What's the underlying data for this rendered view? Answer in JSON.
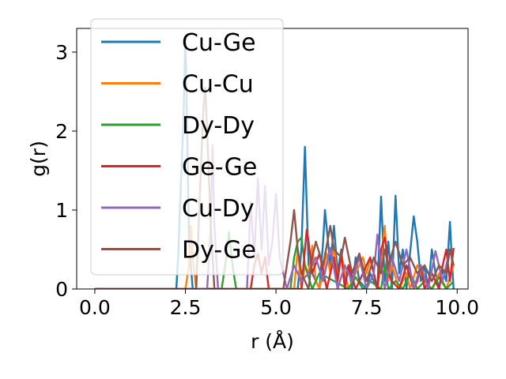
{
  "chart_data": {
    "type": "line",
    "title": "",
    "xlabel": "r (Å)",
    "ylabel": "g(r)",
    "xlim": [
      -0.5,
      10.3
    ],
    "ylim": [
      0,
      3.3
    ],
    "xticks": [
      0.0,
      2.5,
      5.0,
      7.5,
      10.0
    ],
    "xtick_labels": [
      "0.0",
      "2.5",
      "5.0",
      "7.5",
      "10.0"
    ],
    "yticks": [
      0,
      1,
      2,
      3
    ],
    "ytick_labels": [
      "0",
      "1",
      "2",
      "3"
    ],
    "grid": false,
    "legend_position": "top-left",
    "series": [
      {
        "name": "Cu-Ge",
        "color": "#1f77b4",
        "x": [
          0.0,
          2.25,
          2.3,
          2.45,
          2.5,
          2.55,
          2.6,
          2.7,
          5.6,
          5.7,
          5.8,
          5.9,
          6.2,
          6.3,
          6.35,
          6.5,
          6.6,
          6.7,
          6.8,
          6.9,
          7.0,
          7.1,
          7.2,
          7.3,
          7.5,
          7.6,
          7.8,
          7.9,
          8.0,
          8.1,
          8.2,
          8.3,
          8.4,
          8.5,
          8.6,
          8.8,
          8.9,
          9.0,
          9.1,
          9.2,
          9.3,
          9.4,
          9.5,
          9.6,
          9.7,
          9.8,
          9.85,
          9.9
        ],
        "y": [
          0.0,
          0.0,
          0.4,
          2.2,
          3.2,
          2.0,
          0.6,
          0.0,
          0.0,
          0.5,
          1.8,
          0.3,
          0.0,
          0.6,
          1.0,
          0.3,
          0.8,
          0.2,
          0.5,
          0.1,
          0.3,
          0.0,
          0.4,
          0.1,
          0.0,
          0.2,
          0.0,
          1.17,
          0.1,
          0.6,
          0.0,
          1.18,
          0.2,
          0.5,
          0.0,
          0.92,
          0.6,
          0.1,
          0.3,
          0.0,
          0.5,
          0.2,
          0.0,
          0.25,
          0.1,
          0.85,
          0.4,
          0.0
        ]
      },
      {
        "name": "Cu-Cu",
        "color": "#ff7f0e",
        "x": [
          0.0,
          2.5,
          2.6,
          2.65,
          2.7,
          2.8,
          5.5,
          5.6,
          5.7,
          5.8,
          5.9,
          6.0,
          6.1,
          6.2,
          6.4,
          6.5,
          6.6,
          6.7,
          6.8,
          7.0,
          7.2,
          7.4,
          7.5,
          7.6,
          7.8,
          7.9,
          8.0,
          8.1,
          8.2,
          8.4,
          8.6,
          8.7,
          8.9,
          9.1,
          9.3,
          9.5,
          9.7,
          9.9
        ],
        "y": [
          0.0,
          0.0,
          0.3,
          0.8,
          0.4,
          0.0,
          0.0,
          0.5,
          0.0,
          0.3,
          0.2,
          0.55,
          0.1,
          0.0,
          0.45,
          0.2,
          0.55,
          0.1,
          0.45,
          0.0,
          0.2,
          0.4,
          0.2,
          0.38,
          0.0,
          0.35,
          0.8,
          0.1,
          0.3,
          0.0,
          0.2,
          0.0,
          0.3,
          0.1,
          0.0,
          0.2,
          0.0,
          0.3
        ]
      },
      {
        "name": "Dy-Dy",
        "color": "#2ca02c",
        "x": [
          0.0,
          3.5,
          3.6,
          3.7,
          3.8,
          3.9,
          5.4,
          5.5,
          5.6,
          5.7,
          5.8,
          6.0,
          6.2,
          7.0,
          7.2,
          7.4,
          7.6,
          7.9,
          8.0,
          8.1,
          8.3,
          8.5,
          8.7,
          8.9,
          9.1,
          9.3,
          9.5,
          9.7,
          9.9
        ],
        "y": [
          0.0,
          0.0,
          0.3,
          0.72,
          0.3,
          0.0,
          0.0,
          0.4,
          0.6,
          0.65,
          0.3,
          0.0,
          0.2,
          0.0,
          0.15,
          0.0,
          0.1,
          0.0,
          0.3,
          0.0,
          0.1,
          0.0,
          0.2,
          0.0,
          0.1,
          0.0,
          0.15,
          0.0,
          0.1
        ]
      },
      {
        "name": "Ge-Ge",
        "color": "#d62728",
        "x": [
          0.0,
          4.3,
          4.4,
          4.5,
          4.6,
          4.7,
          4.8,
          5.7,
          5.8,
          5.85,
          5.9,
          6.0,
          6.2,
          6.4,
          6.6,
          6.7,
          6.8,
          6.9,
          7.0,
          7.2,
          7.4,
          7.6,
          7.8,
          7.9,
          8.0,
          8.05,
          8.1,
          8.2,
          8.4,
          8.6,
          8.8,
          8.9,
          9.0,
          9.1,
          9.3,
          9.5,
          9.6,
          9.7,
          9.8,
          9.9
        ],
        "y": [
          0.0,
          0.0,
          0.3,
          0.45,
          0.2,
          0.4,
          0.0,
          0.0,
          0.5,
          0.75,
          0.6,
          0.2,
          0.45,
          0.0,
          0.4,
          0.1,
          0.45,
          0.0,
          0.3,
          0.0,
          0.2,
          0.4,
          0.0,
          0.5,
          0.65,
          0.5,
          0.2,
          0.1,
          0.0,
          0.3,
          0.0,
          0.1,
          0.3,
          0.0,
          0.2,
          0.0,
          0.3,
          0.5,
          0.1,
          0.52
        ]
      },
      {
        "name": "Cu-Dy",
        "color": "#9467bd",
        "x": [
          0.0,
          3.1,
          3.2,
          3.25,
          3.3,
          3.4,
          4.2,
          4.3,
          4.4,
          4.5,
          4.6,
          4.7,
          4.8,
          4.9,
          5.0,
          5.1,
          5.3,
          5.5,
          5.7,
          5.9,
          6.1,
          6.3,
          6.5,
          6.7,
          6.9,
          7.1,
          7.3,
          7.5,
          7.7,
          7.8,
          7.9,
          8.0,
          8.2,
          8.4,
          8.6,
          8.8,
          9.0,
          9.2,
          9.4,
          9.6,
          9.8,
          9.9
        ],
        "y": [
          0.0,
          0.0,
          0.8,
          1.82,
          0.8,
          0.0,
          0.0,
          1.1,
          0.4,
          1.4,
          0.5,
          1.3,
          0.3,
          0.6,
          1.2,
          0.4,
          0.0,
          0.3,
          0.1,
          0.2,
          0.4,
          0.1,
          0.52,
          0.0,
          0.3,
          0.1,
          0.4,
          0.0,
          0.2,
          0.69,
          0.3,
          0.0,
          0.4,
          0.1,
          0.5,
          0.0,
          0.3,
          0.0,
          0.48,
          0.1,
          0.5,
          0.3
        ]
      },
      {
        "name": "Dy-Ge",
        "color": "#8c564b",
        "x": [
          0.0,
          2.8,
          2.9,
          3.0,
          3.05,
          3.1,
          3.2,
          3.3,
          5.2,
          5.3,
          5.4,
          5.5,
          5.6,
          5.7,
          5.9,
          6.0,
          6.1,
          6.3,
          6.5,
          6.6,
          6.8,
          6.9,
          7.1,
          7.3,
          7.5,
          7.7,
          7.9,
          8.0,
          8.1,
          8.3,
          8.5,
          8.7,
          8.9,
          9.1,
          9.3,
          9.5,
          9.7,
          9.8,
          9.9
        ],
        "y": [
          0.0,
          0.0,
          1.2,
          2.3,
          2.55,
          2.0,
          0.8,
          0.0,
          0.0,
          0.3,
          0.6,
          1.0,
          0.5,
          0.2,
          0.0,
          0.4,
          0.6,
          0.3,
          0.8,
          0.5,
          0.4,
          0.65,
          0.2,
          0.45,
          0.1,
          0.4,
          0.2,
          0.5,
          0.3,
          0.6,
          0.3,
          0.4,
          0.2,
          0.3,
          0.1,
          0.3,
          0.2,
          0.5,
          0.3
        ]
      }
    ]
  }
}
